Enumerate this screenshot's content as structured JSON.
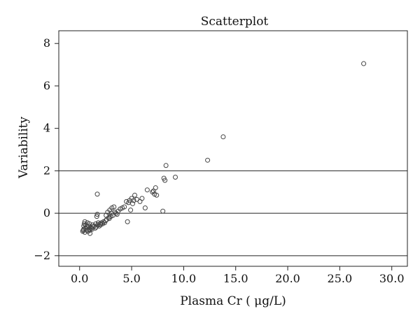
{
  "chart_data": {
    "type": "scatter",
    "title": "Scatterplot",
    "xlabel": "Plasma Cr ( μg/L)",
    "ylabel": "Variability",
    "xlim": [
      -2,
      31.5
    ],
    "ylim": [
      -2.5,
      8.6
    ],
    "x_ticks": [
      0,
      5,
      10,
      15,
      20,
      25,
      30
    ],
    "x_tick_labels": [
      "0.0",
      "5.0",
      "10.0",
      "15.0",
      "20.0",
      "25.0",
      "30.0"
    ],
    "y_ticks": [
      -2,
      0,
      2,
      4,
      6,
      8
    ],
    "y_tick_labels": [
      "−2",
      "0",
      "2",
      "4",
      "6",
      "8"
    ],
    "reference_lines_y": [
      -2,
      0,
      2
    ],
    "grid": false,
    "marker": "open-circle",
    "marker_color": "#444444",
    "points": [
      {
        "x": 0.3,
        "y": -0.85
      },
      {
        "x": 0.35,
        "y": -0.8
      },
      {
        "x": 0.4,
        "y": -0.75
      },
      {
        "x": 0.4,
        "y": -0.6
      },
      {
        "x": 0.45,
        "y": -0.5
      },
      {
        "x": 0.5,
        "y": -0.4
      },
      {
        "x": 0.5,
        "y": -0.9
      },
      {
        "x": 0.55,
        "y": -0.7
      },
      {
        "x": 0.6,
        "y": -0.55
      },
      {
        "x": 0.65,
        "y": -0.8
      },
      {
        "x": 0.7,
        "y": -0.65
      },
      {
        "x": 0.75,
        "y": -0.45
      },
      {
        "x": 0.8,
        "y": -0.85
      },
      {
        "x": 0.85,
        "y": -0.6
      },
      {
        "x": 0.9,
        "y": -0.75
      },
      {
        "x": 0.95,
        "y": -0.5
      },
      {
        "x": 1.0,
        "y": -0.8
      },
      {
        "x": 1.0,
        "y": -0.95
      },
      {
        "x": 1.05,
        "y": -0.65
      },
      {
        "x": 1.1,
        "y": -0.7
      },
      {
        "x": 1.2,
        "y": -0.75
      },
      {
        "x": 1.25,
        "y": -0.55
      },
      {
        "x": 1.3,
        "y": -0.65
      },
      {
        "x": 1.4,
        "y": -0.6
      },
      {
        "x": 1.5,
        "y": -0.7
      },
      {
        "x": 1.55,
        "y": -0.5
      },
      {
        "x": 1.6,
        "y": -0.65
      },
      {
        "x": 1.65,
        "y": -0.15
      },
      {
        "x": 1.7,
        "y": -0.05
      },
      {
        "x": 1.75,
        "y": -0.55
      },
      {
        "x": 1.8,
        "y": -0.45
      },
      {
        "x": 1.9,
        "y": -0.6
      },
      {
        "x": 1.95,
        "y": -0.5
      },
      {
        "x": 2.0,
        "y": -0.55
      },
      {
        "x": 2.1,
        "y": -0.45
      },
      {
        "x": 2.2,
        "y": -0.5
      },
      {
        "x": 2.3,
        "y": -0.4
      },
      {
        "x": 2.4,
        "y": -0.45
      },
      {
        "x": 2.5,
        "y": -0.35
      },
      {
        "x": 2.55,
        "y": -0.1
      },
      {
        "x": 2.6,
        "y": -0.3
      },
      {
        "x": 2.7,
        "y": 0.05
      },
      {
        "x": 2.8,
        "y": -0.2
      },
      {
        "x": 2.85,
        "y": -0.25
      },
      {
        "x": 2.9,
        "y": 0.15
      },
      {
        "x": 3.0,
        "y": -0.15
      },
      {
        "x": 3.05,
        "y": 0.0
      },
      {
        "x": 3.1,
        "y": 0.25
      },
      {
        "x": 3.2,
        "y": -0.1
      },
      {
        "x": 3.3,
        "y": 0.3
      },
      {
        "x": 3.4,
        "y": 0.05
      },
      {
        "x": 3.5,
        "y": 0.0
      },
      {
        "x": 3.6,
        "y": -0.05
      },
      {
        "x": 3.7,
        "y": 0.1
      },
      {
        "x": 3.9,
        "y": 0.2
      },
      {
        "x": 4.1,
        "y": 0.25
      },
      {
        "x": 4.3,
        "y": 0.3
      },
      {
        "x": 4.5,
        "y": 0.55
      },
      {
        "x": 4.6,
        "y": -0.4
      },
      {
        "x": 4.7,
        "y": 0.5
      },
      {
        "x": 4.8,
        "y": 0.6
      },
      {
        "x": 4.9,
        "y": 0.15
      },
      {
        "x": 5.0,
        "y": 0.7
      },
      {
        "x": 5.1,
        "y": 0.45
      },
      {
        "x": 5.2,
        "y": 0.6
      },
      {
        "x": 5.3,
        "y": 0.85
      },
      {
        "x": 5.5,
        "y": 0.65
      },
      {
        "x": 5.8,
        "y": 0.55
      },
      {
        "x": 6.0,
        "y": 0.7
      },
      {
        "x": 6.3,
        "y": 0.25
      },
      {
        "x": 6.5,
        "y": 1.1
      },
      {
        "x": 7.0,
        "y": 1.0
      },
      {
        "x": 7.1,
        "y": 1.05
      },
      {
        "x": 7.2,
        "y": 0.9
      },
      {
        "x": 7.4,
        "y": 0.85
      },
      {
        "x": 7.3,
        "y": 1.2
      },
      {
        "x": 8.0,
        "y": 0.1
      },
      {
        "x": 8.1,
        "y": 1.65
      },
      {
        "x": 8.2,
        "y": 1.55
      },
      {
        "x": 8.3,
        "y": 2.25
      },
      {
        "x": 9.2,
        "y": 1.7
      },
      {
        "x": 12.3,
        "y": 2.5
      },
      {
        "x": 13.8,
        "y": 3.6
      },
      {
        "x": 27.3,
        "y": 7.05
      },
      {
        "x": 1.7,
        "y": 0.9
      }
    ]
  }
}
